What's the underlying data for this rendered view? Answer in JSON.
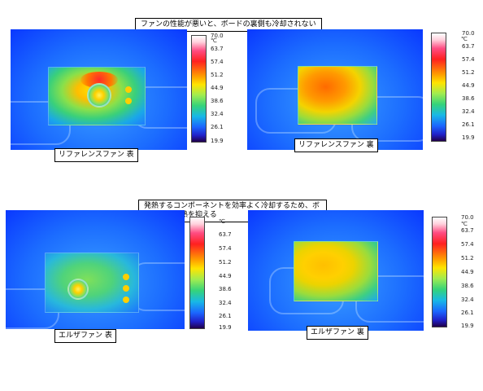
{
  "banners": {
    "top": "ファンの性能が悪いと、ボードの裏側も冷却されない",
    "middle": "発熱するコンポーネントを効率よく冷却するため、ボード全体の熱を抑える"
  },
  "panels": [
    {
      "caption": "リファレンスファン 表"
    },
    {
      "caption": "リファレンスファン 裏"
    },
    {
      "caption": "エルザファン 表"
    },
    {
      "caption": "エルザファン 裏"
    }
  ],
  "scale": {
    "unit": "℃",
    "ticks": [
      "70.0",
      "63.7",
      "57.4",
      "51.2",
      "44.9",
      "38.6",
      "32.4",
      "26.1",
      "19.9"
    ]
  }
}
